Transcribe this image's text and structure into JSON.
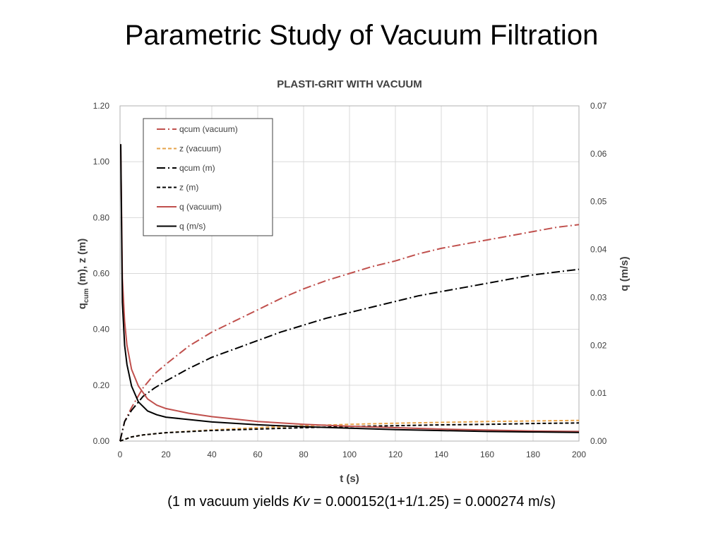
{
  "slide": {
    "title": "Parametric Study of Vacuum Filtration",
    "footnote": {
      "before": "(1 m vacuum yields ",
      "variable": "Kv",
      "after": " = 0.000152(1+1/1.25) = 0.000274 m/s)"
    }
  },
  "chart_data": {
    "type": "line",
    "title": "PLASTI-GRIT WITH VACUUM",
    "xlabel": "t (s)",
    "ylabel": {
      "main": "q",
      "subscript": "cum",
      "rest": " (m), z (m)"
    },
    "y2label": "q (m/s)",
    "xlim": [
      0,
      200
    ],
    "ylim": [
      0,
      1.2
    ],
    "y2lim": [
      0,
      0.07
    ],
    "x_ticks": [
      "0",
      "20",
      "40",
      "60",
      "80",
      "100",
      "120",
      "140",
      "160",
      "180",
      "200"
    ],
    "y_ticks": [
      "0.00",
      "0.20",
      "0.40",
      "0.60",
      "0.80",
      "1.00",
      "1.20"
    ],
    "y2_ticks": [
      "0.00",
      "0.01",
      "0.02",
      "0.03",
      "0.04",
      "0.05",
      "0.06",
      "0.07"
    ],
    "grid": true,
    "legend_position": "top-left",
    "series": [
      {
        "name": "qcum (vacuum)",
        "axis": "left",
        "color": "#c0504d",
        "dash": "dashdot",
        "x": [
          0,
          2,
          5,
          10,
          15,
          20,
          30,
          40,
          50,
          60,
          70,
          80,
          90,
          100,
          110,
          120,
          130,
          140,
          150,
          160,
          170,
          180,
          190,
          200
        ],
        "y": [
          0.0,
          0.07,
          0.12,
          0.19,
          0.24,
          0.275,
          0.34,
          0.39,
          0.43,
          0.47,
          0.51,
          0.545,
          0.575,
          0.6,
          0.625,
          0.645,
          0.67,
          0.69,
          0.705,
          0.72,
          0.735,
          0.75,
          0.765,
          0.775
        ]
      },
      {
        "name": "z (vacuum)",
        "axis": "left",
        "color": "#e6a34a",
        "dash": "dash",
        "x": [
          0,
          5,
          10,
          20,
          40,
          60,
          80,
          100,
          120,
          140,
          160,
          180,
          200
        ],
        "y": [
          0.0,
          0.015,
          0.022,
          0.03,
          0.04,
          0.048,
          0.055,
          0.06,
          0.064,
          0.067,
          0.07,
          0.072,
          0.074
        ]
      },
      {
        "name": "qcum (m)",
        "axis": "left",
        "color": "#000000",
        "dash": "dashdot",
        "x": [
          0,
          2,
          5,
          10,
          15,
          20,
          30,
          40,
          50,
          60,
          70,
          80,
          90,
          100,
          110,
          120,
          130,
          140,
          150,
          160,
          170,
          180,
          190,
          200
        ],
        "y": [
          0.0,
          0.07,
          0.11,
          0.16,
          0.19,
          0.215,
          0.26,
          0.3,
          0.33,
          0.36,
          0.39,
          0.415,
          0.44,
          0.46,
          0.48,
          0.5,
          0.52,
          0.535,
          0.55,
          0.565,
          0.58,
          0.595,
          0.605,
          0.615
        ]
      },
      {
        "name": "z (m)",
        "axis": "left",
        "color": "#000000",
        "dash": "dash",
        "x": [
          0,
          5,
          10,
          20,
          40,
          60,
          80,
          100,
          120,
          140,
          160,
          180,
          200
        ],
        "y": [
          0.0,
          0.015,
          0.022,
          0.03,
          0.038,
          0.043,
          0.048,
          0.052,
          0.055,
          0.058,
          0.06,
          0.063,
          0.065
        ]
      },
      {
        "name": "q (vacuum)",
        "axis": "right",
        "color": "#c0504d",
        "dash": "solid",
        "x": [
          0.3,
          1,
          2,
          3,
          5,
          8,
          12,
          16,
          20,
          30,
          40,
          60,
          80,
          100,
          120,
          140,
          160,
          180,
          200
        ],
        "y": [
          0.062,
          0.034,
          0.025,
          0.02,
          0.015,
          0.0115,
          0.0088,
          0.0075,
          0.0068,
          0.0058,
          0.0051,
          0.0041,
          0.0035,
          0.0031,
          0.0028,
          0.0025,
          0.0023,
          0.0021,
          0.002
        ]
      },
      {
        "name": "q (m/s)",
        "axis": "right",
        "color": "#000000",
        "dash": "solid",
        "x": [
          0.3,
          1,
          2,
          3,
          5,
          8,
          12,
          16,
          20,
          30,
          40,
          60,
          80,
          100,
          120,
          140,
          160,
          180,
          200
        ],
        "y": [
          0.062,
          0.029,
          0.02,
          0.016,
          0.0115,
          0.0082,
          0.0063,
          0.0055,
          0.005,
          0.0045,
          0.004,
          0.0034,
          0.003,
          0.0027,
          0.0024,
          0.0022,
          0.002,
          0.0019,
          0.0018
        ]
      }
    ]
  }
}
